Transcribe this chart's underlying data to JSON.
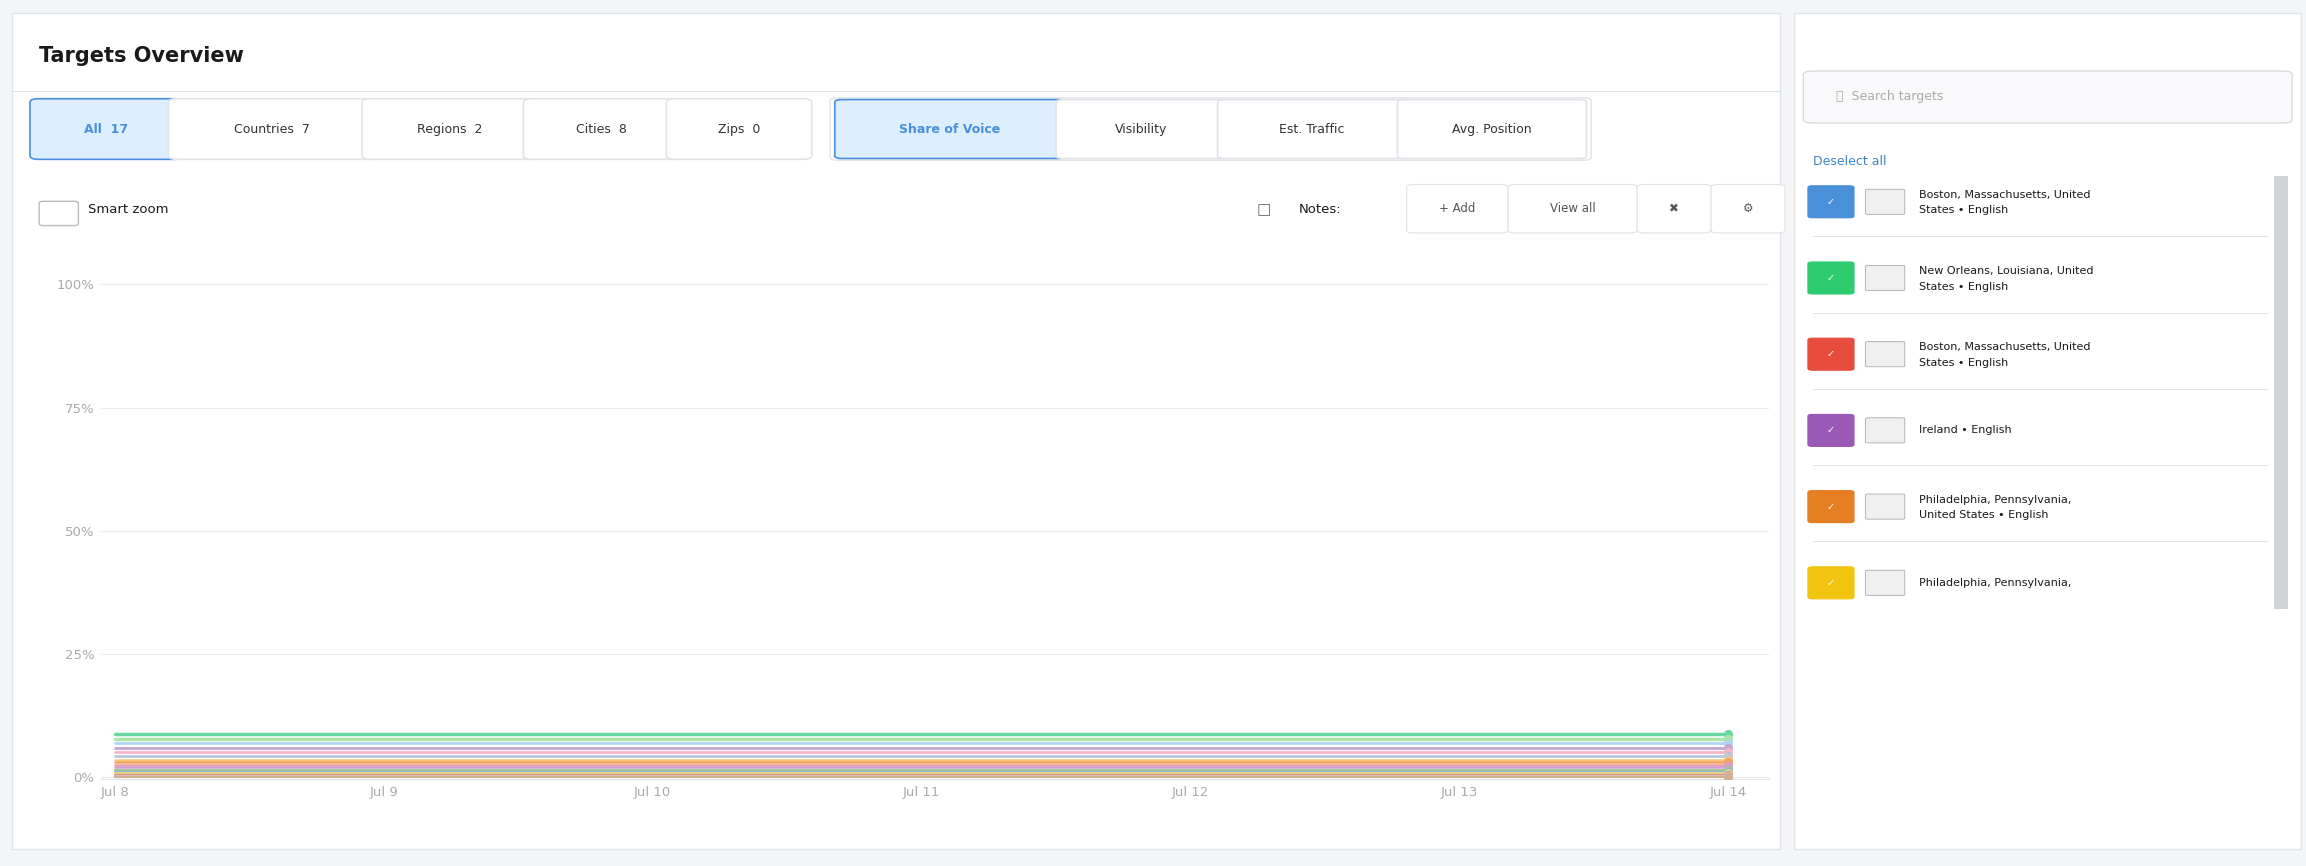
{
  "title": "Targets Overview",
  "bg_color": "#f4f5f7",
  "panel_color": "#ffffff",
  "tab_labels": [
    "All  17",
    "Countries  7",
    "Regions  2",
    "Cities  8",
    "Zips  0"
  ],
  "tab_active_idx": 0,
  "metric_labels": [
    "Share of Voice",
    "Visibility",
    "Est. Traffic",
    "Avg. Position"
  ],
  "metric_active_idx": 0,
  "smart_zoom_label": "Smart zoom",
  "notes_label": "Notes:",
  "notes_add": "+ Add",
  "notes_view": "View all",
  "search_placeholder": "Search targets",
  "deselect_all": "Deselect all",
  "legend_entries": [
    {
      "label": "Boston, Massachusetts, United\nStates • English",
      "check_color": "#4a90d9"
    },
    {
      "label": "New Orleans, Louisiana, United\nStates • English",
      "check_color": "#2ecc71"
    },
    {
      "label": "Boston, Massachusetts, United\nStates • English",
      "check_color": "#e74c3c"
    },
    {
      "label": "Ireland • English",
      "check_color": "#9b59b6"
    },
    {
      "label": "Philadelphia, Pennsylvania,\nUnited States • English",
      "check_color": "#e67e22"
    },
    {
      "label": "Philadelphia, Pennsylvania,",
      "check_color": "#f1c40f"
    }
  ],
  "ytick_labels": [
    "100%",
    "75%",
    "50%",
    "25%",
    "0%"
  ],
  "ytick_values": [
    100,
    75,
    50,
    25,
    0
  ],
  "xtick_labels": [
    "Jul 8",
    "Jul 9",
    "Jul 10",
    "Jul 11",
    "Jul 12",
    "Jul 13",
    "Jul 14"
  ],
  "x_values": [
    0,
    1,
    2,
    3,
    4,
    5,
    6
  ],
  "lines": [
    {
      "color": "#66d9a0",
      "values": [
        8.8,
        8.8,
        8.8,
        8.8,
        8.8,
        8.8,
        8.8
      ],
      "lw": 2.5
    },
    {
      "color": "#a8e6a3",
      "values": [
        7.8,
        7.8,
        7.8,
        7.8,
        7.8,
        7.8,
        7.8
      ],
      "lw": 2.5
    },
    {
      "color": "#b0d4f1",
      "values": [
        6.8,
        6.8,
        6.8,
        6.8,
        6.8,
        6.8,
        6.8
      ],
      "lw": 2.0
    },
    {
      "color": "#c8a4d4",
      "values": [
        5.8,
        5.8,
        5.8,
        5.8,
        5.8,
        5.8,
        5.8
      ],
      "lw": 2.0
    },
    {
      "color": "#f7b4c8",
      "values": [
        5.0,
        5.0,
        5.0,
        5.0,
        5.0,
        5.0,
        5.0
      ],
      "lw": 2.0
    },
    {
      "color": "#b8c8d8",
      "values": [
        4.2,
        4.2,
        4.2,
        4.2,
        4.2,
        4.2,
        4.2
      ],
      "lw": 2.0
    },
    {
      "color": "#f7c87a",
      "values": [
        3.5,
        3.5,
        3.5,
        3.5,
        3.5,
        3.5,
        3.5
      ],
      "lw": 1.8
    },
    {
      "color": "#f4a460",
      "values": [
        3.0,
        3.0,
        3.0,
        3.0,
        3.0,
        3.0,
        3.0
      ],
      "lw": 1.8
    },
    {
      "color": "#e8a0a0",
      "values": [
        2.5,
        2.5,
        2.5,
        2.5,
        2.5,
        2.5,
        2.5
      ],
      "lw": 1.8
    },
    {
      "color": "#d4a0d4",
      "values": [
        2.0,
        2.0,
        2.0,
        2.0,
        2.0,
        2.0,
        2.0
      ],
      "lw": 1.8
    },
    {
      "color": "#a0c4a0",
      "values": [
        1.5,
        1.5,
        1.5,
        1.5,
        1.5,
        1.5,
        1.5
      ],
      "lw": 1.5
    },
    {
      "color": "#80b8d8",
      "values": [
        1.1,
        1.1,
        1.1,
        1.1,
        1.1,
        1.1,
        1.1
      ],
      "lw": 1.5
    },
    {
      "color": "#f0d080",
      "values": [
        0.7,
        0.7,
        0.7,
        0.7,
        0.7,
        0.7,
        0.7
      ],
      "lw": 1.5
    },
    {
      "color": "#c0a080",
      "values": [
        0.45,
        0.45,
        0.45,
        0.45,
        0.45,
        0.45,
        0.45
      ],
      "lw": 1.5
    },
    {
      "color": "#90c0b0",
      "values": [
        0.25,
        0.25,
        0.25,
        0.25,
        0.25,
        0.25,
        0.25
      ],
      "lw": 1.5
    },
    {
      "color": "#f0b0c0",
      "values": [
        0.12,
        0.12,
        0.12,
        0.12,
        0.12,
        0.12,
        0.12
      ],
      "lw": 1.5
    },
    {
      "color": "#d0b090",
      "values": [
        0.05,
        0.05,
        0.05,
        0.05,
        0.05,
        0.05,
        0.05
      ],
      "lw": 1.5
    }
  ],
  "chart_border_color": "#e0e3e8",
  "grid_color": "#e8eaed",
  "axis_text_color": "#aaaaaa",
  "title_color": "#1a1a1a",
  "panel_border_color": "#e0e3e8",
  "tab_active_bg": "#ddeeff",
  "tab_active_border": "#4a90d9",
  "tab_active_text": "#4a90d9",
  "tab_inactive_text": "#333333",
  "metric_active_bg": "#ddeeff",
  "metric_active_border": "#4a90d9",
  "metric_active_text": "#4a90d9",
  "metric_inactive_text": "#333333",
  "notes_icon_color": "#555555",
  "search_border_color": "#d0d3d8",
  "deselect_color": "#3d85c8",
  "scrollbar_color": "#d0d3d8"
}
